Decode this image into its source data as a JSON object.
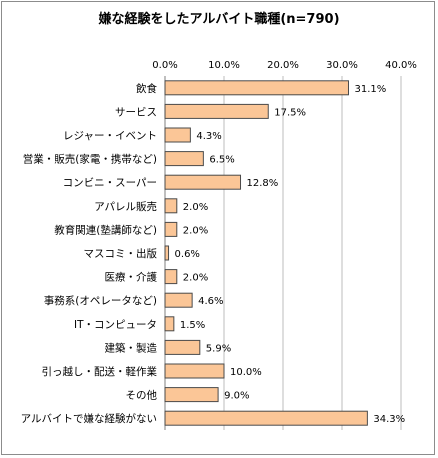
{
  "chart_data": {
    "type": "bar",
    "orientation": "horizontal",
    "title": "嫌な経験をしたアルバイト職種(n=790)",
    "categories": [
      "飲食",
      "サービス",
      "レジャー・イベント",
      "営業・販売(家電・携帯など)",
      "コンビニ・スーパー",
      "アパレル販売",
      "教育関連(塾講師など)",
      "マスコミ・出版",
      "医療・介護",
      "事務系(オペレータなど)",
      "IT・コンピュータ",
      "建築・製造",
      "引っ越し・配送・軽作業",
      "その他",
      "アルバイトで嫌な経験がない"
    ],
    "values": [
      31.1,
      17.5,
      4.3,
      6.5,
      12.8,
      2.0,
      2.0,
      0.6,
      2.0,
      4.6,
      1.5,
      5.9,
      10.0,
      9.0,
      34.3
    ],
    "value_labels": [
      "31.1%",
      "17.5%",
      "4.3%",
      "6.5%",
      "12.8%",
      "2.0%",
      "2.0%",
      "0.6%",
      "2.0%",
      "4.6%",
      "1.5%",
      "5.9%",
      "10.0%",
      "9.0%",
      "34.3%"
    ],
    "xlim": [
      0,
      40
    ],
    "ticks": [
      0,
      10,
      20,
      30,
      40
    ],
    "tick_labels": [
      "0.0%",
      "10.0%",
      "20.0%",
      "30.0%",
      "40.0%"
    ],
    "axis_position": "top",
    "grid": true,
    "colors": {
      "bar_fill": "#fbc697",
      "bar_stroke": "#4a4a4a",
      "grid": "#bdbdbd",
      "axis": "#7f7f7f"
    }
  }
}
